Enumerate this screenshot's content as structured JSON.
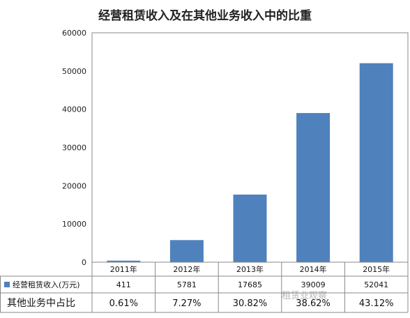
{
  "chart_data": {
    "type": "bar",
    "title": "经营租赁收入及在其他业务收入中的比重",
    "categories": [
      "2011年",
      "2012年",
      "2013年",
      "2014年",
      "2015年"
    ],
    "series": [
      {
        "name": "经营租赁收入(万元)",
        "values": [
          411,
          5781,
          17685,
          39009,
          52041
        ],
        "color": "#4f81bd"
      }
    ],
    "ratio_row": {
      "label": "其他业务中占比",
      "values": [
        "0.61%",
        "7.27%",
        "30.82%",
        "38.62%",
        "43.12%"
      ]
    },
    "yticks": [
      "0",
      "10000",
      "20000",
      "30000",
      "40000",
      "50000",
      "60000"
    ],
    "ylim": [
      0,
      60000
    ],
    "legend": "data-table-left",
    "grid": false
  },
  "watermark": "租赁业观察"
}
